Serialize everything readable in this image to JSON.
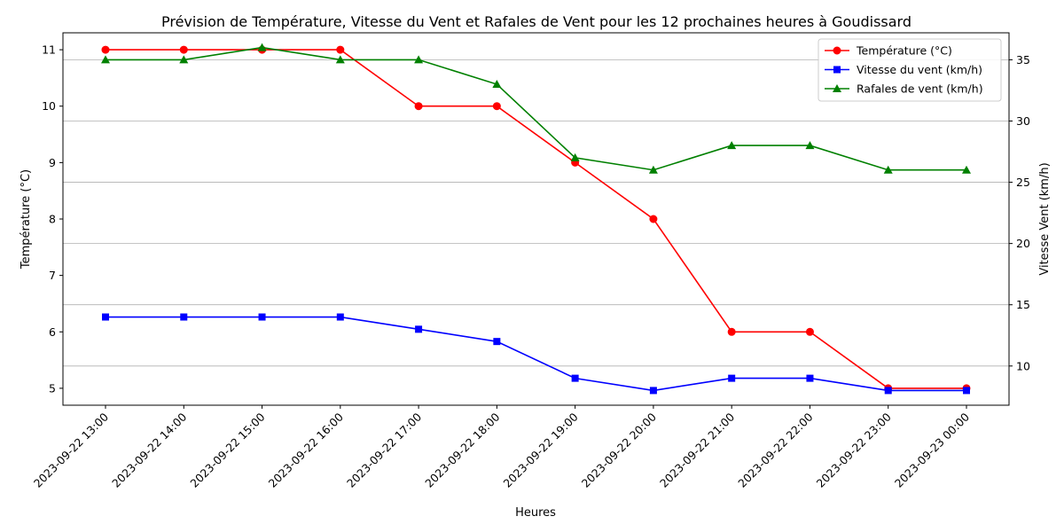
{
  "chart_data": {
    "type": "line",
    "title": "Prévision de Température, Vitesse du Vent et Rafales de Vent pour les 12 prochaines heures à Goudissard",
    "xlabel": "Heures",
    "ylabel_left": "Température (°C)",
    "ylabel_right": "Vitesse Vent (km/h)",
    "categories": [
      "2023-09-22 13:00",
      "2023-09-22 14:00",
      "2023-09-22 15:00",
      "2023-09-22 16:00",
      "2023-09-22 17:00",
      "2023-09-22 18:00",
      "2023-09-22 19:00",
      "2023-09-22 20:00",
      "2023-09-22 21:00",
      "2023-09-22 22:00",
      "2023-09-22 23:00",
      "2023-09-23 00:00"
    ],
    "ylim_left": [
      4.7,
      11.3
    ],
    "yticks_left": [
      5,
      6,
      7,
      8,
      9,
      10,
      11
    ],
    "ylim_right": [
      6.8,
      37.2
    ],
    "yticks_right": [
      10,
      15,
      20,
      25,
      30,
      35
    ],
    "grid": "horizontal lines on right axis",
    "legend_position": "top-right",
    "series": [
      {
        "name": "Température (°C)",
        "axis": "left",
        "color": "#ff0000",
        "marker": "circle",
        "values": [
          11,
          11,
          11,
          11,
          10,
          10,
          9,
          8,
          6,
          6,
          5,
          5
        ]
      },
      {
        "name": "Vitesse du vent (km/h)",
        "axis": "right",
        "color": "#0000ff",
        "marker": "square",
        "values": [
          14,
          14,
          14,
          14,
          13,
          12,
          9,
          8,
          9,
          9,
          8,
          8
        ]
      },
      {
        "name": "Rafales de vent (km/h)",
        "axis": "right",
        "color": "#008000",
        "marker": "triangle",
        "values": [
          35,
          35,
          36,
          35,
          35,
          33,
          27,
          26,
          28,
          28,
          26,
          26
        ]
      }
    ]
  }
}
